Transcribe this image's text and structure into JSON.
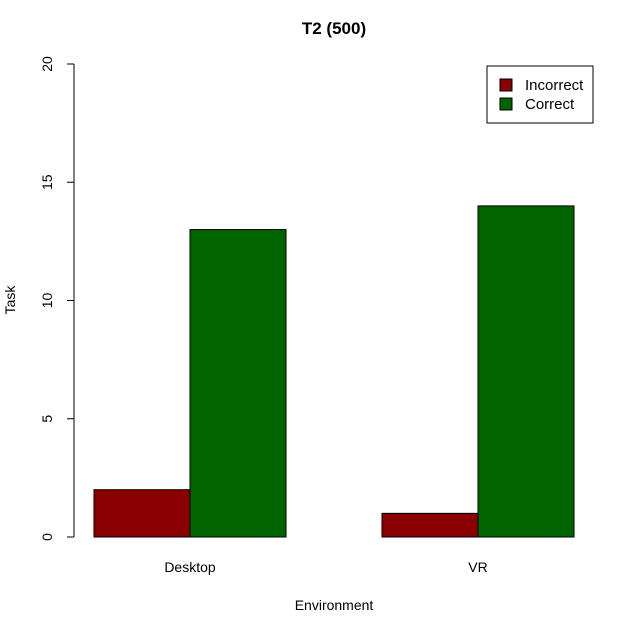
{
  "chart_data": {
    "type": "bar",
    "title": "T2 (500)",
    "xlabel": "Environment",
    "ylabel": "Task",
    "categories": [
      "Desktop",
      "VR"
    ],
    "series": [
      {
        "name": "Incorrect",
        "color": "#8b0000",
        "values": [
          2,
          1
        ]
      },
      {
        "name": "Correct",
        "color": "#006400",
        "values": [
          13,
          14
        ]
      }
    ],
    "ylim": [
      0,
      20
    ],
    "yticks": [
      "0",
      "5",
      "10",
      "15",
      "20"
    ],
    "grid": false,
    "legend_position": "top-right",
    "bar_mode": "grouped"
  }
}
